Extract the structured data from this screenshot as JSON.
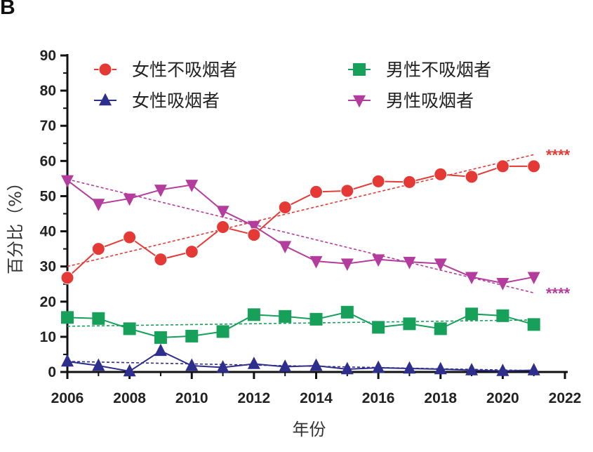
{
  "panel_label": "B",
  "chart_data": {
    "type": "line",
    "title": "",
    "xlabel": "年份",
    "ylabel": "百分比（%）",
    "xlim": [
      2006,
      2022
    ],
    "ylim": [
      0,
      90
    ],
    "xticks": [
      "2006",
      "2008",
      "2010",
      "2012",
      "2014",
      "2016",
      "2018",
      "2020",
      "2022"
    ],
    "yticks": [
      "0",
      "10",
      "20",
      "30",
      "40",
      "50",
      "60",
      "70",
      "80",
      "90"
    ],
    "x": [
      2006,
      2007,
      2008,
      2009,
      2010,
      2011,
      2012,
      2013,
      2014,
      2015,
      2016,
      2017,
      2018,
      2019,
      2020,
      2021
    ],
    "legend_position": "top",
    "series": [
      {
        "name": "女性不吸烟者",
        "marker": "circle",
        "color": "#e53935",
        "values": [
          26.8,
          35.0,
          38.3,
          32.0,
          34.2,
          41.2,
          39.0,
          46.8,
          51.2,
          51.5,
          54.2,
          54.0,
          56.2,
          55.5,
          58.5,
          58.5
        ],
        "trend": [
          30.0,
          61.8
        ],
        "significance": "****"
      },
      {
        "name": "男性不吸烟者",
        "marker": "square",
        "color": "#16a05a",
        "values": [
          15.5,
          15.2,
          12.3,
          9.8,
          10.2,
          11.5,
          16.3,
          15.8,
          15.0,
          17.0,
          12.7,
          13.7,
          12.3,
          16.5,
          16.0,
          13.5
        ],
        "trend": [
          13.0,
          14.8
        ],
        "significance": ""
      },
      {
        "name": "女性吸烟者",
        "marker": "triangle-up",
        "color": "#2e2e8c",
        "values": [
          3.0,
          1.8,
          0.2,
          6.0,
          1.8,
          1.3,
          2.3,
          1.5,
          1.8,
          0.8,
          1.2,
          1.0,
          0.8,
          0.5,
          0.3,
          0.5
        ],
        "trend": [
          3.0,
          0.4
        ],
        "significance": ""
      },
      {
        "name": "男性吸烟者",
        "marker": "triangle-down",
        "color": "#b43c9c",
        "values": [
          54.5,
          47.8,
          49.3,
          51.8,
          53.2,
          45.8,
          41.5,
          35.8,
          31.5,
          30.8,
          32.0,
          31.3,
          30.8,
          27.0,
          25.3,
          27.0
        ],
        "trend": [
          54.8,
          22.5
        ],
        "significance": "****"
      }
    ]
  }
}
